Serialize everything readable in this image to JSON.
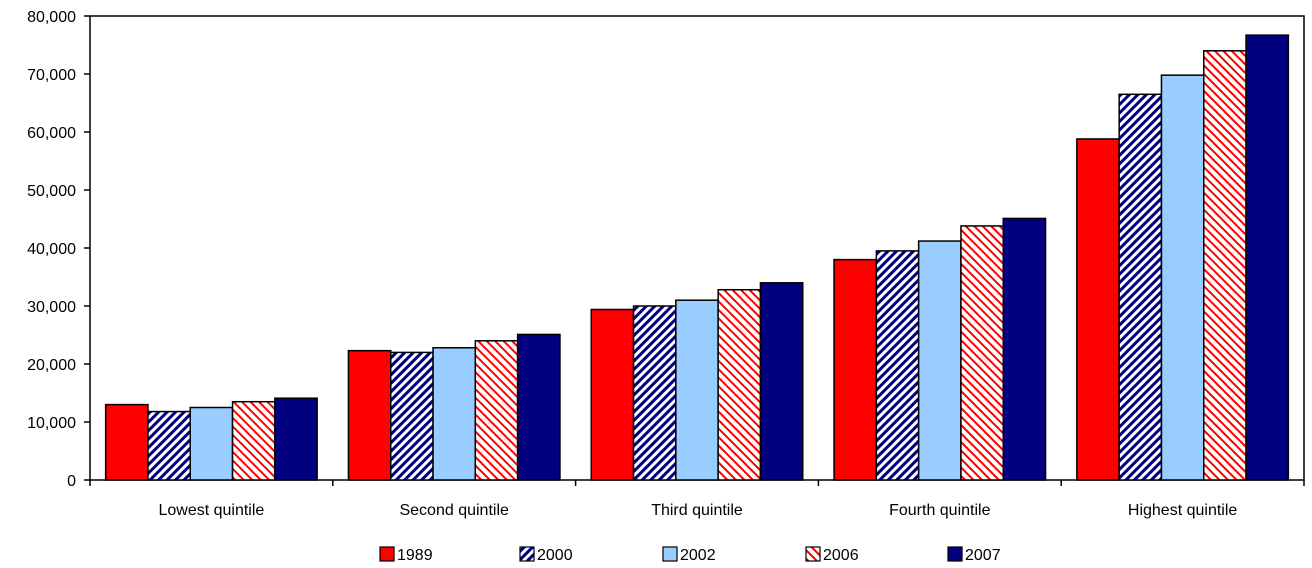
{
  "chart_data": {
    "type": "bar",
    "title": "",
    "xlabel": "",
    "ylabel": "",
    "ylim": [
      0,
      80000
    ],
    "yticks": [
      "0",
      "10,000",
      "20,000",
      "30,000",
      "40,000",
      "50,000",
      "60,000",
      "70,000",
      "80,000"
    ],
    "categories": [
      "Lowest quintile",
      "Second quintile",
      "Third quintile",
      "Fourth quintile",
      "Highest quintile"
    ],
    "series": [
      {
        "name": "1989",
        "style": "solid",
        "color": "#ff0000",
        "values": [
          13000,
          22300,
          29400,
          38000,
          58800
        ]
      },
      {
        "name": "2000",
        "style": "diagonal-hatch",
        "color": "#000080",
        "values": [
          11800,
          22000,
          30000,
          39500,
          66500
        ]
      },
      {
        "name": "2002",
        "style": "solid",
        "color": "#99ccff",
        "values": [
          12500,
          22800,
          31000,
          41200,
          69800
        ]
      },
      {
        "name": "2006",
        "style": "diagonal-hatch",
        "color": "#ff0000",
        "values": [
          13500,
          24000,
          32800,
          43800,
          74000
        ]
      },
      {
        "name": "2007",
        "style": "solid",
        "color": "#000080",
        "values": [
          14100,
          25100,
          34000,
          45100,
          76700
        ]
      }
    ],
    "legend_position": "bottom",
    "grid": false
  }
}
